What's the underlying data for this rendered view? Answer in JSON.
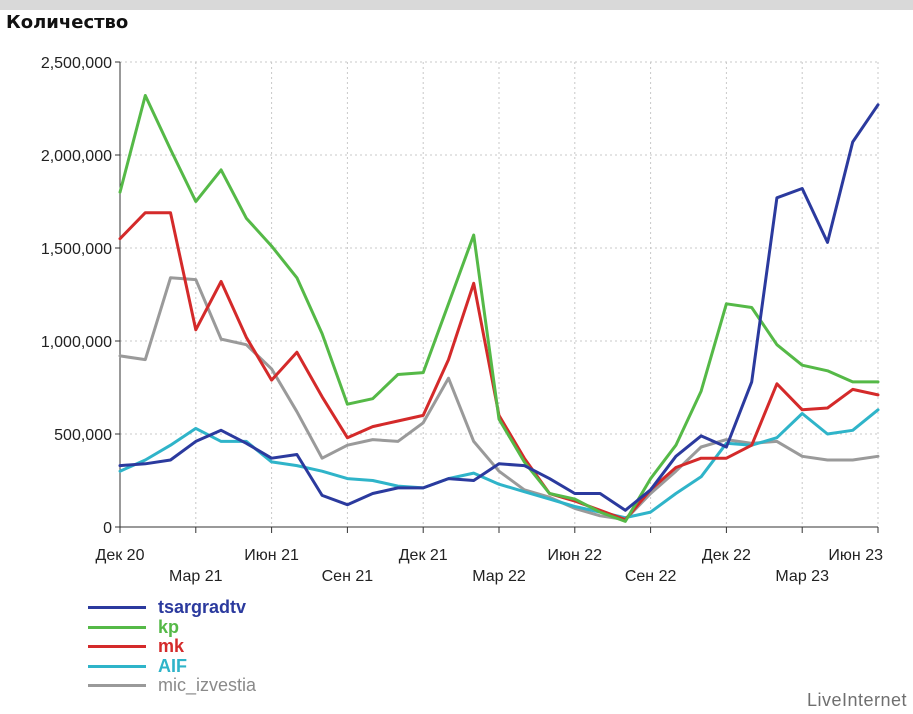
{
  "chart_data": {
    "type": "line",
    "ylabel": "Количество",
    "ylim": [
      0,
      2500000
    ],
    "yticks": [
      "2,500,000",
      "2,000,000",
      "1,500,000",
      "1,000,000",
      "500,000",
      "0"
    ],
    "ytick_values": [
      2500000,
      2000000,
      1500000,
      1000000,
      500000,
      0
    ],
    "xticks_top": [
      "Дек 20",
      "Июн 21",
      "Дек 21",
      "Июн 22",
      "Дек 22",
      "Июн 23"
    ],
    "xticks_top_index": [
      0,
      6,
      12,
      18,
      24,
      30
    ],
    "xticks_bottom": [
      "Мар 21",
      "Сен 21",
      "Мар 22",
      "Сен 22",
      "Мар 23"
    ],
    "xticks_bottom_index": [
      3,
      9,
      15,
      21,
      27
    ],
    "grid": true,
    "legend_position": "bottom-left",
    "series": [
      {
        "name": "tsargradtv",
        "color": "#2b3a9e",
        "values": [
          330000,
          340000,
          360000,
          460000,
          520000,
          450000,
          370000,
          390000,
          170000,
          120000,
          180000,
          210000,
          210000,
          260000,
          250000,
          340000,
          330000,
          260000,
          180000,
          180000,
          90000,
          200000,
          380000,
          490000,
          430000,
          780000,
          1770000,
          1820000,
          1530000,
          2070000,
          2270000
        ]
      },
      {
        "name": "kp",
        "color": "#55b947",
        "values": [
          1800000,
          2320000,
          2030000,
          1750000,
          1920000,
          1660000,
          1510000,
          1340000,
          1040000,
          660000,
          690000,
          820000,
          830000,
          1200000,
          1570000,
          580000,
          350000,
          180000,
          150000,
          80000,
          30000,
          260000,
          440000,
          730000,
          1200000,
          1180000,
          980000,
          870000,
          840000,
          780000,
          780000
        ]
      },
      {
        "name": "mk",
        "color": "#d42a2a",
        "values": [
          1550000,
          1690000,
          1690000,
          1060000,
          1320000,
          1020000,
          790000,
          940000,
          700000,
          480000,
          540000,
          570000,
          600000,
          900000,
          1310000,
          600000,
          370000,
          180000,
          140000,
          90000,
          40000,
          200000,
          320000,
          370000,
          370000,
          440000,
          770000,
          630000,
          640000,
          740000,
          710000
        ]
      },
      {
        "name": "AIF",
        "color": "#2fb4c9",
        "values": [
          300000,
          360000,
          440000,
          530000,
          460000,
          460000,
          350000,
          330000,
          300000,
          260000,
          250000,
          220000,
          210000,
          260000,
          290000,
          230000,
          190000,
          150000,
          110000,
          80000,
          50000,
          80000,
          180000,
          270000,
          450000,
          440000,
          480000,
          610000,
          500000,
          520000,
          630000
        ]
      },
      {
        "name": "mic_izvestia",
        "color": "#9a9a9a",
        "values": [
          920000,
          900000,
          1340000,
          1330000,
          1010000,
          980000,
          850000,
          620000,
          370000,
          440000,
          470000,
          460000,
          560000,
          800000,
          460000,
          300000,
          200000,
          160000,
          100000,
          60000,
          40000,
          180000,
          300000,
          430000,
          470000,
          450000,
          460000,
          380000,
          360000,
          360000,
          380000
        ]
      }
    ]
  },
  "legend_labels": [
    "tsargradtv",
    "kp",
    "mk",
    "AIF",
    "mic_izvestia"
  ],
  "legend_colors": [
    "#2b3a9e",
    "#55b947",
    "#d42a2a",
    "#2fb4c9",
    "#9a9a9a"
  ],
  "legend_label_colors": [
    "#2b3a9e",
    "#55b947",
    "#d42a2a",
    "#2fb4c9",
    "#8a8a8a"
  ],
  "watermark": "LiveInternet"
}
